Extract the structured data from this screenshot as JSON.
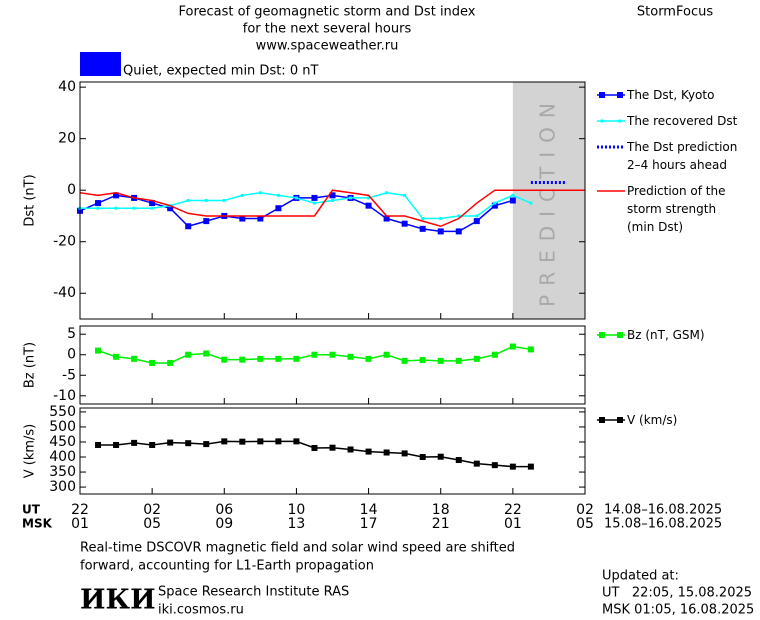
{
  "header": {
    "title_lines": [
      "Forecast of geomagnetic storm and Dst index",
      "for the next several hours",
      "www.spaceweather.ru"
    ],
    "brand": "StormFocus",
    "status": {
      "color": "#0000ff",
      "text": "Quiet, expected min Dst: 0 nT"
    }
  },
  "chart_data": [
    {
      "type": "line",
      "y_label": "Dst (nT)",
      "xlim": [
        0,
        28
      ],
      "xticks": [
        0,
        4,
        8,
        12,
        16,
        20,
        24,
        28
      ],
      "ylim": [
        -50,
        42
      ],
      "yticks": [
        -40,
        -20,
        0,
        20,
        40
      ],
      "shaded_region": {
        "xlim": [
          24,
          28
        ],
        "label": "PREDICTION",
        "color": "#d3d3d3"
      },
      "series": [
        {
          "name": "The Dst, Kyoto",
          "color": "#0000ff",
          "marker": "square",
          "linestyle": "solid",
          "x": [
            0,
            1,
            2,
            3,
            4,
            5,
            6,
            7,
            8,
            9,
            10,
            11,
            12,
            13,
            14,
            15,
            16,
            17,
            18,
            19,
            20,
            21,
            22,
            23,
            24
          ],
          "values": [
            -8,
            -5,
            -2,
            -3,
            -5,
            -7,
            -14,
            -12,
            -10,
            -11,
            -11,
            -7,
            -3,
            -3,
            -2,
            -3,
            -6,
            -11,
            -13,
            -15,
            -16,
            -16,
            -12,
            -6,
            -4
          ]
        },
        {
          "name": "The recovered Dst",
          "color": "#00ffff",
          "marker": "small-square",
          "linestyle": "solid",
          "x": [
            0,
            1,
            2,
            3,
            4,
            5,
            6,
            7,
            8,
            9,
            10,
            11,
            12,
            13,
            14,
            15,
            16,
            17,
            18,
            19,
            20,
            21,
            22,
            23,
            24,
            25
          ],
          "values": [
            -7,
            -7,
            -7,
            -7,
            -7,
            -6,
            -4,
            -4,
            -4,
            -2,
            -1,
            -2,
            -3,
            -5,
            -4,
            -3,
            -3,
            -1,
            -2,
            -11,
            -11,
            -10,
            -10,
            -5,
            -2,
            -5
          ]
        },
        {
          "name": "The Dst prediction\n2–4 hours ahead",
          "color": "#0000ff",
          "marker": "none",
          "linestyle": "dotted",
          "x": [
            25,
            27
          ],
          "values": [
            3,
            3
          ]
        },
        {
          "name": "Prediction of the\nstorm strength\n(min Dst)",
          "color": "#ff0000",
          "marker": "none",
          "linestyle": "solid",
          "x": [
            0,
            1,
            2,
            3,
            4,
            5,
            6,
            7,
            8,
            9,
            10,
            11,
            12,
            13,
            14,
            15,
            16,
            17,
            18,
            19,
            20,
            21,
            22,
            23,
            24,
            25,
            26,
            27,
            28
          ],
          "values": [
            -1,
            -2,
            -1,
            -3,
            -4,
            -6,
            -9,
            -10,
            -10,
            -10,
            -10,
            -10,
            -10,
            -10,
            0,
            -1,
            -2,
            -10,
            -10,
            -12,
            -14,
            -11,
            -5,
            0,
            0,
            0,
            0,
            0,
            0
          ]
        }
      ]
    },
    {
      "type": "line",
      "y_label": "Bz (nT)",
      "xlim": [
        0,
        28
      ],
      "xticks": [
        0,
        4,
        8,
        12,
        16,
        20,
        24,
        28
      ],
      "ylim": [
        -12,
        7
      ],
      "yticks": [
        -10,
        -5,
        0,
        5
      ],
      "series": [
        {
          "name": "Bz (nT, GSM)",
          "color": "#00ee00",
          "marker": "square",
          "linestyle": "solid",
          "x": [
            1,
            2,
            3,
            4,
            5,
            6,
            7,
            8,
            9,
            10,
            11,
            12,
            13,
            14,
            15,
            16,
            17,
            18,
            19,
            20,
            21,
            22,
            23,
            24,
            25
          ],
          "values": [
            1,
            -0.5,
            -1,
            -2,
            -2,
            0,
            0.3,
            -1.2,
            -1.2,
            -1,
            -1,
            -1,
            0,
            0,
            -0.5,
            -1,
            0,
            -1.5,
            -1.3,
            -1.5,
            -1.5,
            -1,
            0,
            2,
            1.3
          ]
        }
      ]
    },
    {
      "type": "line",
      "y_label": "V (km/s)",
      "xlim": [
        0,
        28
      ],
      "xticks": [
        0,
        4,
        8,
        12,
        16,
        20,
        24,
        28
      ],
      "ylim": [
        277,
        563
      ],
      "yticks": [
        300,
        350,
        400,
        450,
        500,
        550
      ],
      "series": [
        {
          "name": "V (km/s)",
          "color": "#000000",
          "marker": "square",
          "linestyle": "solid",
          "x": [
            1,
            2,
            3,
            4,
            5,
            6,
            7,
            8,
            9,
            10,
            11,
            12,
            13,
            14,
            15,
            16,
            17,
            18,
            19,
            20,
            21,
            22,
            23,
            24,
            25
          ],
          "values": [
            440,
            440,
            447,
            440,
            448,
            446,
            443,
            452,
            451,
            452,
            452,
            452,
            430,
            431,
            425,
            418,
            415,
            412,
            400,
            401,
            390,
            378,
            373,
            368,
            368
          ]
        }
      ],
      "x_label_rows": [
        {
          "name": "UT",
          "range": "14.08–16.08.2025",
          "ticks": [
            {
              "value": 0,
              "label": "22"
            },
            {
              "value": 4,
              "label": "02"
            },
            {
              "value": 8,
              "label": "06"
            },
            {
              "value": 12,
              "label": "10"
            },
            {
              "value": 16,
              "label": "14"
            },
            {
              "value": 20,
              "label": "18"
            },
            {
              "value": 24,
              "label": "22"
            },
            {
              "value": 28,
              "label": "02"
            }
          ]
        },
        {
          "name": "MSK",
          "range": "15.08–16.08.2025",
          "ticks": [
            {
              "value": 0,
              "label": "01"
            },
            {
              "value": 4,
              "label": "05"
            },
            {
              "value": 8,
              "label": "09"
            },
            {
              "value": 12,
              "label": "13"
            },
            {
              "value": 16,
              "label": "17"
            },
            {
              "value": 20,
              "label": "21"
            },
            {
              "value": 24,
              "label": "01"
            },
            {
              "value": 28,
              "label": "05"
            }
          ]
        }
      ]
    }
  ],
  "footer": {
    "note_lines": [
      "Real-time DSCOVR magnetic field and solar wind speed are shifted",
      "forward, accounting for L1-Earth propagation"
    ],
    "logo": "ИКИ",
    "institute": "Space Research Institute RAS",
    "site": "iki.cosmos.ru",
    "updated_label": "Updated at:",
    "updated_ut": "UT   22:05, 15.08.2025",
    "updated_msk": "MSK 01:05, 16.08.2025"
  }
}
